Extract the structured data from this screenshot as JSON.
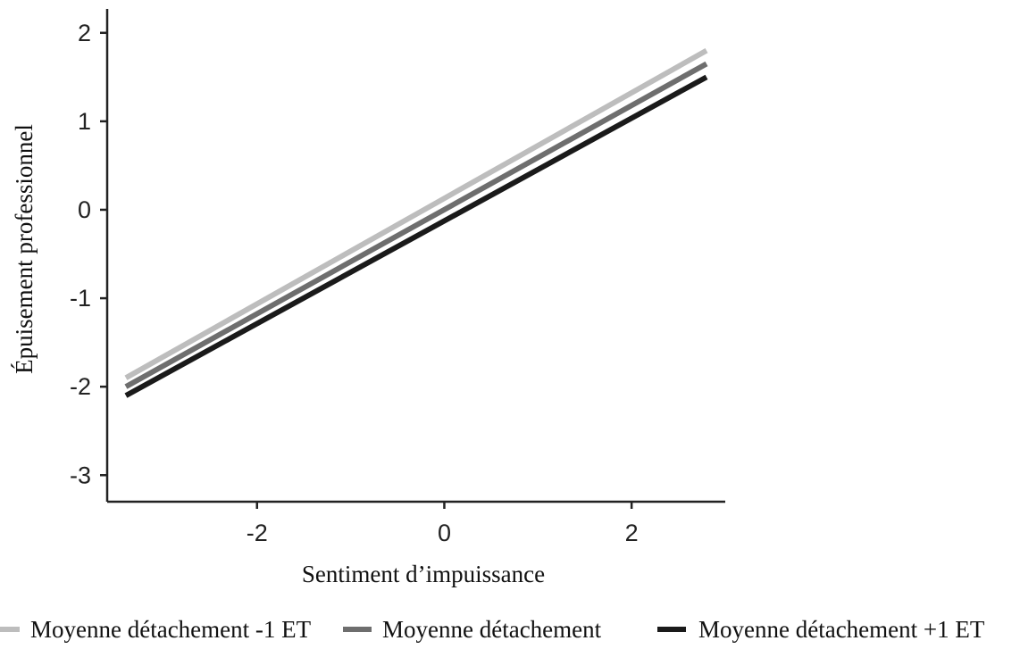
{
  "chart_data": {
    "type": "line",
    "title": "",
    "xlabel": "Sentiment d’impuissance",
    "ylabel": "Épuisement professionnel",
    "xlim": [
      -3.6,
      3.0
    ],
    "ylim": [
      -3.3,
      2.25
    ],
    "xticks": [
      -2,
      0,
      2
    ],
    "yticks": [
      2,
      1,
      0,
      -1,
      -2,
      -3
    ],
    "x_tick_labels": [
      "-2",
      "0",
      "2"
    ],
    "y_tick_labels": [
      "2",
      "1",
      "0",
      "-1",
      "-2",
      "-3"
    ],
    "grid": false,
    "legend_position": "bottom",
    "series": [
      {
        "name": "Moyenne détachement -1 ET",
        "color": "#bdbdbd",
        "x": [
          -3.4,
          2.8
        ],
        "y": [
          -1.9,
          1.8
        ]
      },
      {
        "name": "Moyenne détachement",
        "color": "#6e6e6e",
        "x": [
          -3.4,
          2.8
        ],
        "y": [
          -2.0,
          1.65
        ]
      },
      {
        "name": "Moyenne détachement +1 ET",
        "color": "#1a1a1a",
        "x": [
          -3.4,
          2.8
        ],
        "y": [
          -2.1,
          1.5
        ]
      }
    ]
  }
}
